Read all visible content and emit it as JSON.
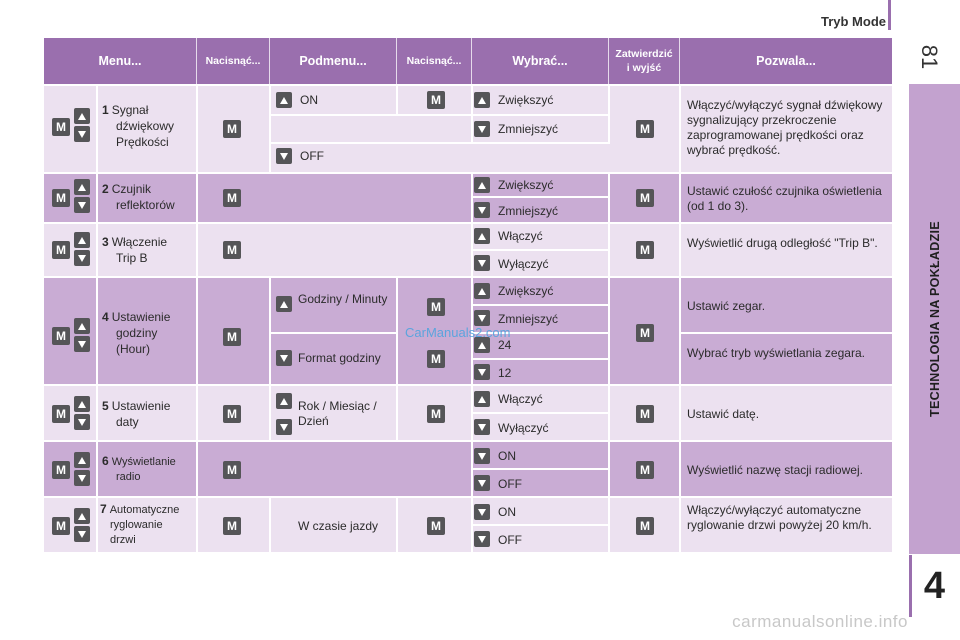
{
  "header": {
    "title": "Tryb Mode",
    "page_number": "81"
  },
  "side_tab": {
    "label": "TECHNOLOGIA NA POKŁADZIE",
    "chapter": "4"
  },
  "watermark": "CarManuals2.com",
  "footer_watermark": "carmanualsonline.info",
  "table": {
    "headers": {
      "menu": "Menu...",
      "press1": "Nacisnąć...",
      "submenu": "Podmenu...",
      "press2": "Nacisnąć...",
      "select": "Wybrać...",
      "confirm": "Zatwierdzić i wyjść",
      "allows": "Pozwala..."
    },
    "rows": [
      {
        "num": "1",
        "line1": "Sygnał",
        "line2": "dźwiękowy",
        "line3": "Prędkości",
        "sub1": "ON",
        "sub2": "OFF",
        "opt1": "Zwiększyć",
        "opt2": "Zmniejszyć",
        "desc": "Włączyć/wyłączyć sygnał dźwiękowy sygnalizujący przekroczenie zaprogramowanej prędkości oraz wybrać prędkość."
      },
      {
        "num": "2",
        "line1": "Czujnik",
        "line2": "reflektorów",
        "opt1": "Zwiększyć",
        "opt2": "Zmniejszyć",
        "desc": "Ustawić czułość czujnika oświetlenia (od 1 do 3)."
      },
      {
        "num": "3",
        "line1": "Włączenie",
        "line2": "Trip B",
        "opt1": "Włączyć",
        "opt2": "Wyłączyć",
        "desc": "Wyświetlić drugą odległość \"Trip B\"."
      },
      {
        "num": "4",
        "line1": "Ustawienie",
        "line2": "godziny",
        "line3": "(Hour)",
        "sub1": "Godziny / Minuty",
        "sub2": "Format godziny",
        "opt1": "Zwiększyć",
        "opt2": "Zmniejszyć",
        "opt3": "24",
        "opt4": "12",
        "desc1": "Ustawić zegar.",
        "desc2": "Wybrać tryb wyświetlania zegara."
      },
      {
        "num": "5",
        "line1": "Ustawienie",
        "line2": "daty",
        "sub1": "Rok / Miesiąc / Dzień",
        "opt1": "Włączyć",
        "opt2": "Wyłączyć",
        "desc": "Ustawić datę."
      },
      {
        "num": "6",
        "line1": "Wyświetlanie",
        "line2": "radio",
        "opt1": "ON",
        "opt2": "OFF",
        "desc": "Wyświetlić nazwę stacji radiowej."
      },
      {
        "num": "7",
        "line1": "Automatyczne",
        "line2": "ryglowanie",
        "line3": "drzwi",
        "sub1": "W czasie jazdy",
        "opt1": "ON",
        "opt2": "OFF",
        "desc": "Włączyć/wyłączyć automatyczne ryglowanie drzwi powyżej 20 km/h."
      }
    ],
    "m_label": "M"
  }
}
